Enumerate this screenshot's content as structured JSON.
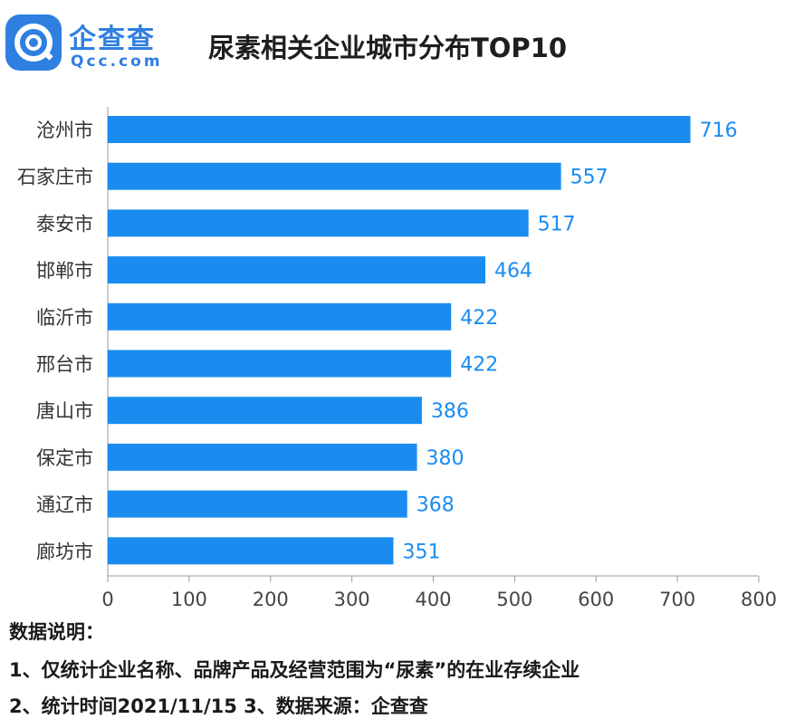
{
  "logo": {
    "brand_cn": "企查查",
    "brand_en": "Qcc.com"
  },
  "colors": {
    "bar": "#1a8cf0",
    "label": "#1a8cf0",
    "axis": "#999999",
    "text": "#333333"
  },
  "chart_data": {
    "type": "bar",
    "orientation": "horizontal",
    "title": "尿素相关企业城市分布TOP10",
    "categories": [
      "沧州市",
      "石家庄市",
      "泰安市",
      "邯郸市",
      "临沂市",
      "邢台市",
      "唐山市",
      "保定市",
      "通辽市",
      "廊坊市"
    ],
    "values": [
      716,
      557,
      517,
      464,
      422,
      422,
      386,
      380,
      368,
      351
    ],
    "xlim": [
      0,
      800
    ],
    "xticks": [
      0,
      100,
      200,
      300,
      400,
      500,
      600,
      700,
      800
    ],
    "xlabel": "",
    "ylabel": "",
    "grid": false,
    "legend": "none"
  },
  "notes": {
    "heading": "数据说明：",
    "line1": "1、仅统计企业名称、品牌产品及经营范围为“尿素”的在业存续企业",
    "line2": "2、统计时间2021/11/15   3、数据来源：企查查"
  }
}
